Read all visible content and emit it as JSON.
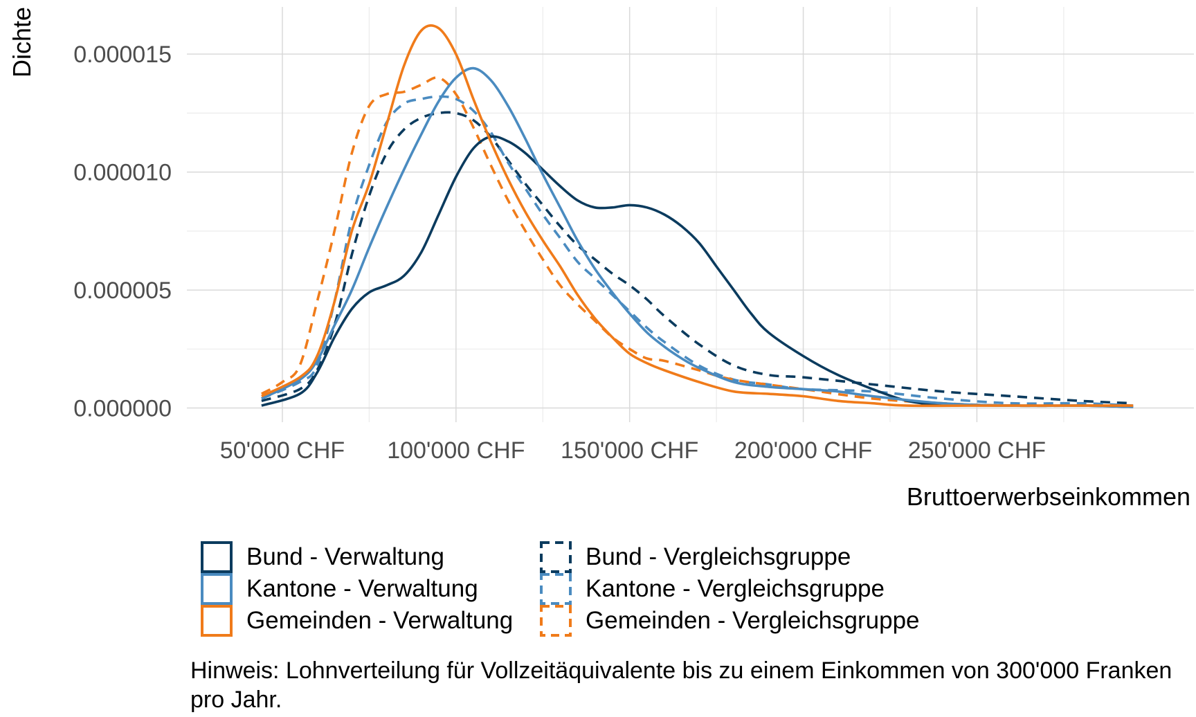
{
  "chart_data": {
    "type": "line",
    "title": "",
    "xlabel": "Bruttoerwerbseinkommen",
    "ylabel": "Dichte",
    "xlim": [
      22500,
      312500
    ],
    "ylim": [
      -6e-07,
      1.7e-05
    ],
    "x_ticks": [
      50000,
      100000,
      150000,
      200000,
      250000
    ],
    "x_tick_labels": [
      "50'000 CHF",
      "100'000 CHF",
      "150'000 CHF",
      "200'000 CHF",
      "250'000 CHF"
    ],
    "y_ticks": [
      0,
      5e-06,
      1e-05,
      1.5e-05
    ],
    "y_tick_labels": [
      "0.000000",
      "0.000005",
      "0.000010",
      "0.000015"
    ],
    "grid": true,
    "legend_position": "bottom",
    "series": [
      {
        "name": "Bund - Verwaltung",
        "color": "#0b3b5e",
        "dash": "solid",
        "x": [
          44000,
          55000,
          60000,
          65000,
          70000,
          75000,
          80000,
          85000,
          90000,
          95000,
          100000,
          105000,
          110000,
          115000,
          120000,
          125000,
          130000,
          135000,
          140000,
          145000,
          150000,
          155000,
          160000,
          165000,
          170000,
          175000,
          180000,
          185000,
          190000,
          200000,
          210000,
          220000,
          230000,
          240000,
          260000,
          280000,
          295000
        ],
        "y": [
          1e-07,
          6e-07,
          1.5e-06,
          3e-06,
          4.2e-06,
          4.9e-06,
          5.2e-06,
          5.6e-06,
          6.6e-06,
          8.2e-06,
          9.8e-06,
          1.1e-05,
          1.15e-05,
          1.13e-05,
          1.08e-05,
          1.01e-05,
          9.4e-06,
          8.8e-06,
          8.5e-06,
          8.5e-06,
          8.6e-06,
          8.5e-06,
          8.2e-06,
          7.7e-06,
          7e-06,
          6e-06,
          5e-06,
          4e-06,
          3.2e-06,
          2.2e-06,
          1.4e-06,
          8e-07,
          3e-07,
          1.5e-07,
          1e-07,
          1e-07,
          5e-08
        ]
      },
      {
        "name": "Kantone - Verwaltung",
        "color": "#4a8bc0",
        "dash": "solid",
        "x": [
          44000,
          55000,
          60000,
          65000,
          70000,
          75000,
          80000,
          85000,
          90000,
          95000,
          100000,
          105000,
          110000,
          115000,
          120000,
          125000,
          130000,
          135000,
          140000,
          145000,
          150000,
          155000,
          160000,
          165000,
          170000,
          180000,
          190000,
          200000,
          210000,
          220000,
          240000,
          260000,
          280000,
          295000
        ],
        "y": [
          4e-07,
          1.2e-06,
          2e-06,
          3.5e-06,
          5e-06,
          6.8e-06,
          8.5e-06,
          1.01e-05,
          1.16e-05,
          1.3e-05,
          1.4e-05,
          1.44e-05,
          1.39e-05,
          1.28e-05,
          1.14e-05,
          9.9e-06,
          8.5e-06,
          7.1e-06,
          5.9e-06,
          4.9e-06,
          4e-06,
          3.2e-06,
          2.6e-06,
          2.1e-06,
          1.7e-06,
          1.1e-06,
          9e-07,
          8e-07,
          7e-07,
          5e-07,
          2e-07,
          1e-07,
          1e-07,
          5e-08
        ]
      },
      {
        "name": "Gemeinden - Verwaltung",
        "color": "#f07b1a",
        "dash": "solid",
        "x": [
          44000,
          55000,
          60000,
          65000,
          70000,
          75000,
          80000,
          85000,
          90000,
          95000,
          100000,
          105000,
          110000,
          115000,
          120000,
          125000,
          130000,
          135000,
          140000,
          145000,
          150000,
          155000,
          160000,
          170000,
          180000,
          190000,
          200000,
          210000,
          220000,
          230000,
          250000,
          270000,
          295000
        ],
        "y": [
          5e-07,
          1.3e-06,
          2.2e-06,
          4.5e-06,
          7.5e-06,
          9.5e-06,
          1.2e-05,
          1.45e-05,
          1.6e-05,
          1.61e-05,
          1.5e-05,
          1.31e-05,
          1.13e-05,
          9.7e-06,
          8.3e-06,
          7.1e-06,
          6e-06,
          4.8e-06,
          3.8e-06,
          3e-06,
          2.3e-06,
          1.9e-06,
          1.6e-06,
          1.1e-06,
          7e-07,
          6e-07,
          5e-07,
          3e-07,
          2e-07,
          1e-07,
          1e-07,
          1e-07,
          1e-07
        ]
      },
      {
        "name": "Bund - Vergleichsgruppe",
        "color": "#0b3b5e",
        "dash": "dashed",
        "x": [
          44000,
          55000,
          60000,
          65000,
          70000,
          75000,
          80000,
          85000,
          90000,
          95000,
          100000,
          105000,
          110000,
          115000,
          120000,
          125000,
          130000,
          135000,
          140000,
          145000,
          150000,
          155000,
          160000,
          170000,
          180000,
          190000,
          200000,
          220000,
          240000,
          260000,
          280000,
          295000
        ],
        "y": [
          3e-07,
          8e-07,
          1.6e-06,
          3.5e-06,
          6.5e-06,
          9e-06,
          1.08e-05,
          1.18e-05,
          1.23e-05,
          1.25e-05,
          1.25e-05,
          1.22e-05,
          1.15e-05,
          1.05e-05,
          9.5e-06,
          8.6e-06,
          7.7e-06,
          6.9e-06,
          6.3e-06,
          5.7e-06,
          5.2e-06,
          4.6e-06,
          3.9e-06,
          2.7e-06,
          1.8e-06,
          1.4e-06,
          1.3e-06,
          1e-06,
          7e-07,
          5e-07,
          3e-07,
          2e-07
        ]
      },
      {
        "name": "Kantone - Vergleichsgruppe",
        "color": "#4a8bc0",
        "dash": "dashed",
        "x": [
          44000,
          55000,
          60000,
          65000,
          70000,
          75000,
          80000,
          85000,
          90000,
          95000,
          100000,
          105000,
          110000,
          115000,
          120000,
          125000,
          130000,
          135000,
          140000,
          145000,
          150000,
          155000,
          160000,
          170000,
          180000,
          190000,
          200000,
          220000,
          240000,
          260000,
          280000,
          295000
        ],
        "y": [
          4e-07,
          1.1e-06,
          1.8e-06,
          4.5e-06,
          8e-06,
          1.03e-05,
          1.21e-05,
          1.29e-05,
          1.31e-05,
          1.32e-05,
          1.31e-05,
          1.26e-05,
          1.17e-05,
          1.04e-05,
          9.3e-06,
          8.2e-06,
          7.2e-06,
          6.2e-06,
          5.5e-06,
          4.8e-06,
          4.1e-06,
          3.4e-06,
          2.8e-06,
          1.8e-06,
          1.2e-06,
          1e-06,
          8e-07,
          7e-07,
          4e-07,
          2e-07,
          2e-07,
          1e-07
        ]
      },
      {
        "name": "Gemeinden - Vergleichsgruppe",
        "color": "#f07b1a",
        "dash": "dashed",
        "x": [
          44000,
          50000,
          55000,
          60000,
          65000,
          70000,
          75000,
          80000,
          85000,
          90000,
          95000,
          100000,
          105000,
          110000,
          115000,
          120000,
          125000,
          130000,
          135000,
          140000,
          145000,
          150000,
          155000,
          160000,
          170000,
          180000,
          200000,
          220000,
          240000,
          260000,
          280000,
          295000
        ],
        "y": [
          6e-07,
          1.1e-06,
          1.8e-06,
          4.5e-06,
          7.5e-06,
          1.08e-05,
          1.28e-05,
          1.33e-05,
          1.34e-05,
          1.37e-05,
          1.4e-05,
          1.33e-05,
          1.19e-05,
          1.03e-05,
          8.8e-06,
          7.5e-06,
          6.3e-06,
          5.2e-06,
          4.4e-06,
          3.7e-06,
          3e-06,
          2.5e-06,
          2.1e-06,
          2e-06,
          1.6e-06,
          1.2e-06,
          8e-07,
          4e-07,
          2e-07,
          1e-07,
          1e-07,
          1e-07
        ]
      }
    ]
  },
  "legend": {
    "items": [
      {
        "label": "Bund - Verwaltung"
      },
      {
        "label": "Kantone - Verwaltung"
      },
      {
        "label": "Gemeinden - Verwaltung"
      },
      {
        "label": "Bund - Vergleichsgruppe"
      },
      {
        "label": "Kantone - Vergleichsgruppe"
      },
      {
        "label": "Gemeinden - Vergleichsgruppe"
      }
    ]
  },
  "note": "Hinweis: Lohnverteilung für Vollzeitäquivalente bis zu einem Einkommen von 300'000 Franken pro Jahr."
}
